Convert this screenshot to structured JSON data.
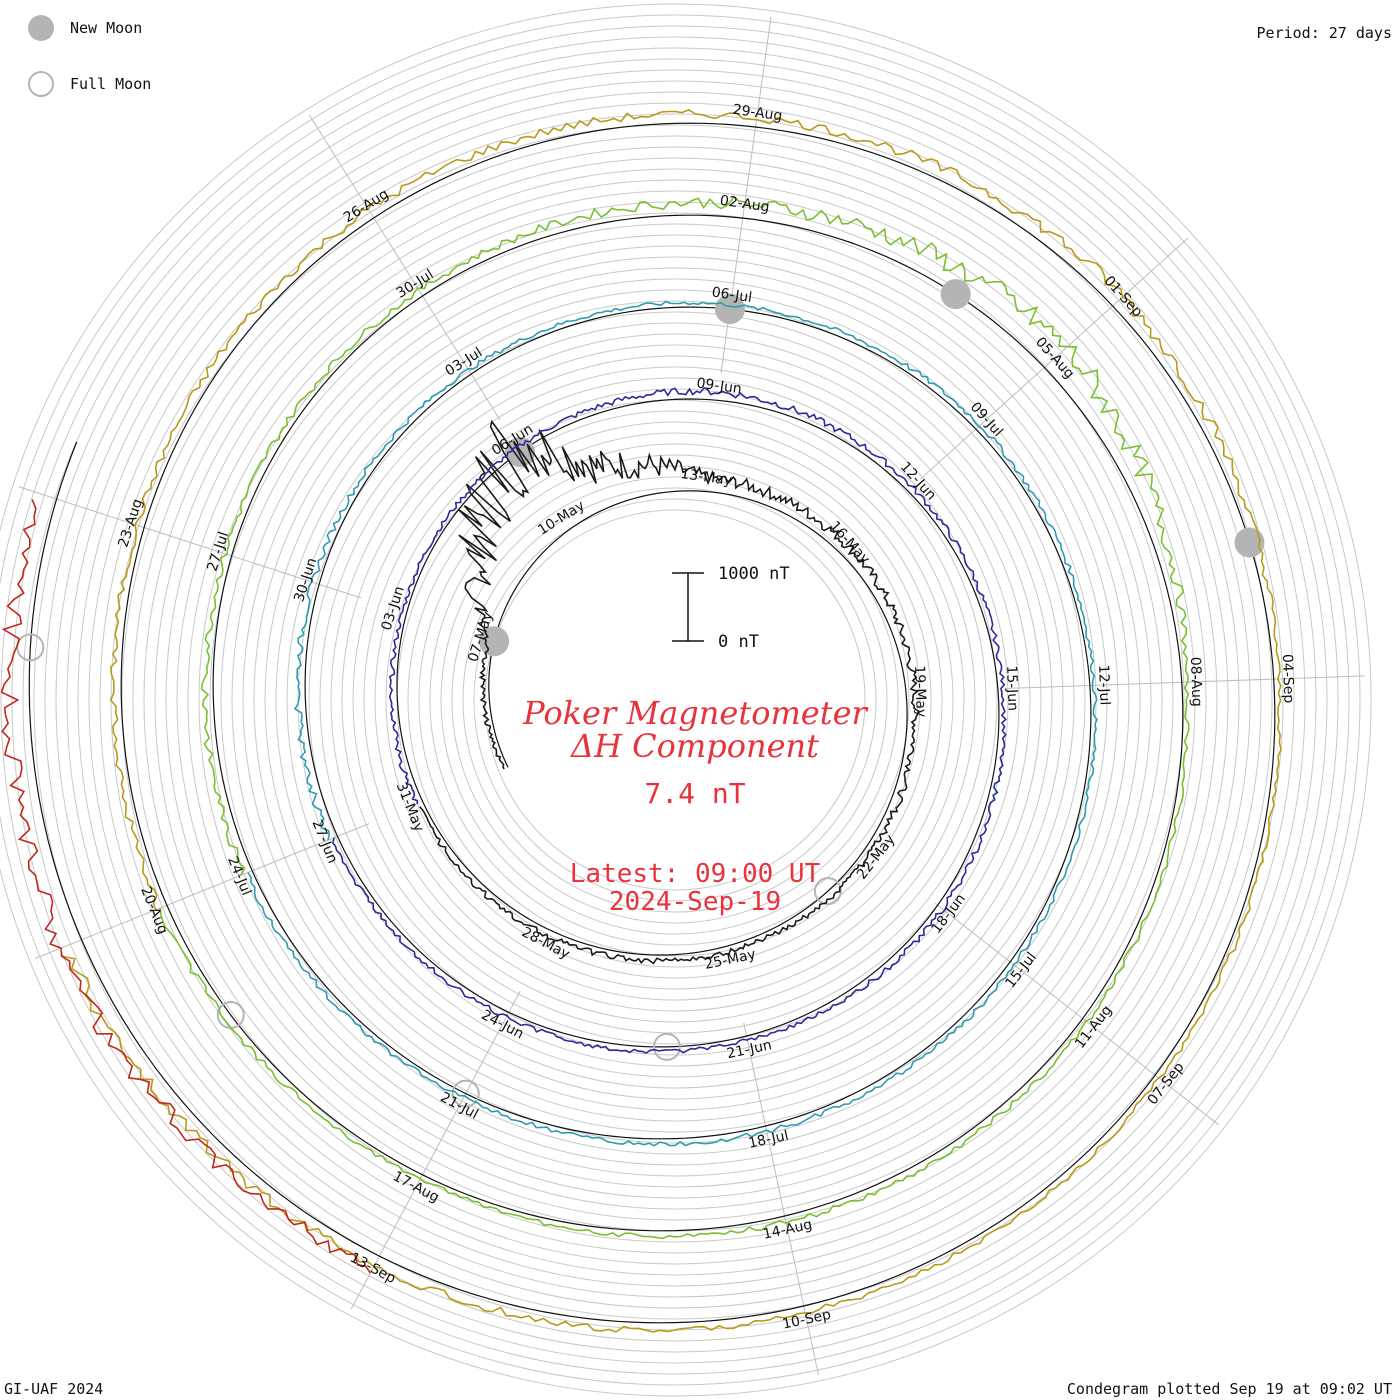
{
  "legend": {
    "new_moon": "New Moon",
    "full_moon": "Full Moon"
  },
  "period": "Period: 27 days",
  "title": {
    "line1": "Poker Magnetometer",
    "line2": "ΔH Component",
    "value": "7.4 nT"
  },
  "latest": {
    "time": "Latest: 09:00 UT",
    "date": "2024-Sep-19"
  },
  "scale": {
    "top_label": "1000 nT",
    "bottom_label": "0 nT"
  },
  "footer": {
    "left": "GI-UAF 2024",
    "right": "Condegram plotted Sep 19 at 09:02 UT"
  },
  "chart_data": {
    "type": "line",
    "subtype": "condegram spiral",
    "period_days": 27,
    "data_start": "2024-05-04",
    "latest": "2024-09-19 09:00 UT",
    "scale_nT": [
      0,
      1000
    ],
    "series": [
      {
        "color": "#1a1a1a",
        "x": [
          "2024-05-04",
          "2024-05-07",
          "2024-05-10",
          "2024-05-11",
          "2024-05-13",
          "2024-05-16",
          "2024-05-19",
          "2024-05-22",
          "2024-05-25",
          "2024-05-28",
          "2024-05-31"
        ],
        "y": [
          60,
          100,
          1500,
          600,
          200,
          150,
          120,
          100,
          80,
          90,
          70
        ]
      },
      {
        "color": "#2a2a9a",
        "x": [
          "2024-05-31",
          "2024-06-03",
          "2024-06-06",
          "2024-06-09",
          "2024-06-12",
          "2024-06-15",
          "2024-06-18",
          "2024-06-21",
          "2024-06-24",
          "2024-06-27"
        ],
        "y": [
          100,
          60,
          70,
          120,
          80,
          70,
          90,
          60,
          80,
          70
        ]
      },
      {
        "color": "#2e9bb0",
        "x": [
          "2024-06-27",
          "2024-06-30",
          "2024-07-03",
          "2024-07-06",
          "2024-07-09",
          "2024-07-12",
          "2024-07-15",
          "2024-07-18",
          "2024-07-21",
          "2024-07-24"
        ],
        "y": [
          130,
          90,
          70,
          60,
          80,
          60,
          70,
          80,
          60,
          90
        ]
      },
      {
        "color": "#78c030",
        "x": [
          "2024-07-24",
          "2024-07-27",
          "2024-07-30",
          "2024-08-02",
          "2024-08-05",
          "2024-08-08",
          "2024-08-11",
          "2024-08-14",
          "2024-08-17",
          "2024-08-20"
        ],
        "y": [
          140,
          100,
          90,
          200,
          420,
          60,
          80,
          90,
          60,
          110
        ]
      },
      {
        "color": "#b89a18",
        "x": [
          "2024-08-20",
          "2024-08-23",
          "2024-08-26",
          "2024-08-29",
          "2024-09-01",
          "2024-09-04",
          "2024-09-07",
          "2024-09-10",
          "2024-09-13",
          "2024-09-16"
        ],
        "y": [
          120,
          100,
          140,
          130,
          200,
          70,
          80,
          90,
          140,
          250
        ]
      },
      {
        "color": "#c0281c",
        "x": [
          "2024-09-13",
          "2024-09-16",
          "2024-09-19"
        ],
        "y": [
          200,
          320,
          260
        ]
      }
    ],
    "date_labels": [
      {
        "ring": 1,
        "labels": [
          "07-May",
          "10-May",
          "13-May",
          "16-May",
          "19-May",
          "22-May",
          "25-May",
          "28-May",
          "31-May"
        ]
      },
      {
        "ring": 2,
        "labels": [
          "03-Jun",
          "06-Jun",
          "09-Jun",
          "12-Jun",
          "15-Jun",
          "18-Jun",
          "21-Jun",
          "24-Jun",
          "27-Jun"
        ]
      },
      {
        "ring": 3,
        "labels": [
          "30-Jun",
          "03-Jul",
          "06-Jul",
          "09-Jul",
          "12-Jul",
          "15-Jul",
          "18-Jul",
          "21-Jul",
          "24-Jul"
        ]
      },
      {
        "ring": 4,
        "labels": [
          "27-Jul",
          "30-Jul",
          "02-Aug",
          "05-Aug",
          "08-Aug",
          "11-Aug",
          "14-Aug",
          "17-Aug",
          "20-Aug"
        ]
      },
      {
        "ring": 5,
        "labels": [
          "23-Aug",
          "26-Aug",
          "29-Aug",
          "01-Sep",
          "04-Sep",
          "07-Sep",
          "10-Sep",
          "13-Sep"
        ]
      }
    ],
    "new_moons": [
      "2024-05-07",
      "2024-06-06",
      "2024-07-06",
      "2024-08-04",
      "2024-09-03"
    ],
    "full_moons": [
      "2024-05-23",
      "2024-06-22",
      "2024-07-21",
      "2024-08-19",
      "2024-09-18"
    ]
  }
}
